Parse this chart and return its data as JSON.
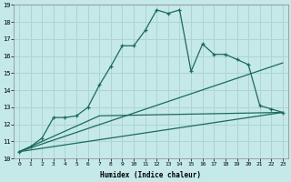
{
  "xlabel": "Humidex (Indice chaleur)",
  "background_color": "#c5e8e8",
  "grid_color": "#aed4d4",
  "line_color": "#1a6b5a",
  "xlim": [
    -0.5,
    23.5
  ],
  "ylim": [
    10,
    19
  ],
  "xticks": [
    0,
    1,
    2,
    3,
    4,
    5,
    6,
    7,
    8,
    9,
    10,
    11,
    12,
    13,
    14,
    15,
    16,
    17,
    18,
    19,
    20,
    21,
    22,
    23
  ],
  "yticks": [
    10,
    11,
    12,
    13,
    14,
    15,
    16,
    17,
    18,
    19
  ],
  "series1_x": [
    0,
    1,
    2,
    3,
    4,
    5,
    6,
    7,
    8,
    9,
    10,
    11,
    12,
    13,
    14,
    15,
    16,
    17,
    18,
    19,
    20,
    21,
    22,
    23
  ],
  "series1_y": [
    10.4,
    10.7,
    11.2,
    12.4,
    12.4,
    12.5,
    13.0,
    14.3,
    15.4,
    16.6,
    16.6,
    17.5,
    18.7,
    18.5,
    18.7,
    15.1,
    16.7,
    16.1,
    16.1,
    15.8,
    15.5,
    13.1,
    12.9,
    12.7
  ],
  "series2_x": [
    0,
    23
  ],
  "series2_y": [
    10.4,
    15.6
  ],
  "series3_x": [
    0,
    23
  ],
  "series3_y": [
    10.4,
    12.7
  ],
  "series4_x": [
    0,
    7,
    23
  ],
  "series4_y": [
    10.4,
    12.5,
    12.7
  ]
}
